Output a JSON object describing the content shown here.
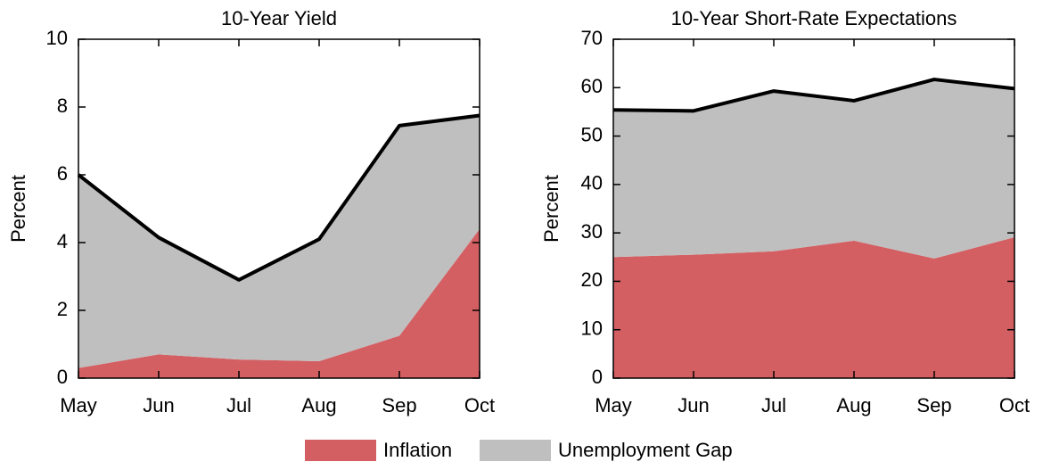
{
  "chart_data": [
    {
      "type": "stacked-area",
      "title": "10-Year Yield",
      "y_label": "Percent",
      "categories": [
        "May",
        "Jun",
        "Jul",
        "Aug",
        "Sep",
        "Oct"
      ],
      "series": [
        {
          "values": [
            0.3,
            0.7,
            0.55,
            0.5,
            1.25,
            4.4
          ]
        },
        {
          "values": [
            5.7,
            3.45,
            2.35,
            3.6,
            6.2,
            3.35
          ]
        }
      ],
      "ylim": [
        0,
        10
      ],
      "yticks": [
        0,
        2,
        4,
        6,
        8,
        10
      ],
      "total_line_color": "#000000"
    },
    {
      "type": "stacked-area",
      "title": "10-Year Short-Rate Expectations",
      "y_label": "Percent",
      "categories": [
        "May",
        "Jun",
        "Jul",
        "Aug",
        "Sep",
        "Oct"
      ],
      "series": [
        {
          "values": [
            25,
            25.5,
            26.2,
            28.4,
            24.7,
            29.1
          ]
        },
        {
          "values": [
            30.4,
            29.7,
            33.1,
            28.9,
            37,
            30.7
          ]
        }
      ],
      "ylim": [
        0,
        70
      ],
      "yticks": [
        0,
        10,
        20,
        30,
        40,
        50,
        60,
        70
      ],
      "total_line_color": "#000000"
    }
  ],
  "legend": [
    {
      "name": "Inflation",
      "color": "#d45f63"
    },
    {
      "name": "Unemployment Gap",
      "color": "#bfbfbf"
    }
  ]
}
